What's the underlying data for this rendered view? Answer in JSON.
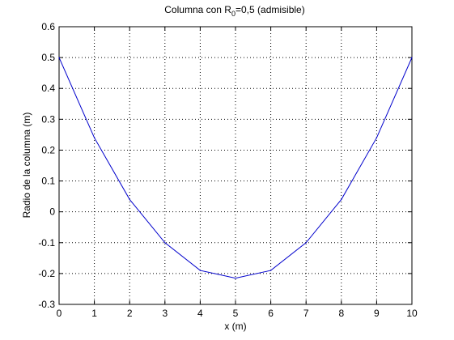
{
  "chart_data": {
    "type": "line",
    "title_prefix": "Columna con R",
    "title_subscript": "0",
    "title_suffix": "=0,5 (admisible)",
    "xlabel": "x (m)",
    "ylabel": "Radio de la columna (m)",
    "xlim": [
      0,
      10
    ],
    "ylim": [
      -0.3,
      0.6
    ],
    "xticks": [
      0,
      1,
      2,
      3,
      4,
      5,
      6,
      7,
      8,
      9,
      10
    ],
    "yticks": [
      -0.3,
      -0.2,
      -0.1,
      0,
      0.1,
      0.2,
      0.3,
      0.4,
      0.5,
      0.6
    ],
    "ytick_labels": [
      "-0.3",
      "-0.2",
      "-0.1",
      "0",
      "0.1",
      "0.2",
      "0.3",
      "0.4",
      "0.5",
      "0.6"
    ],
    "xtick_labels": [
      "0",
      "1",
      "2",
      "3",
      "4",
      "5",
      "6",
      "7",
      "8",
      "9",
      "10"
    ],
    "grid": true,
    "legend": null,
    "series": [
      {
        "color": "#0000cc",
        "x": [
          0,
          1,
          2,
          3,
          4,
          5,
          6,
          7,
          8,
          9,
          10
        ],
        "y": [
          0.5,
          0.24,
          0.04,
          -0.1,
          -0.19,
          -0.215,
          -0.19,
          -0.1,
          0.04,
          0.24,
          0.5
        ]
      }
    ]
  }
}
